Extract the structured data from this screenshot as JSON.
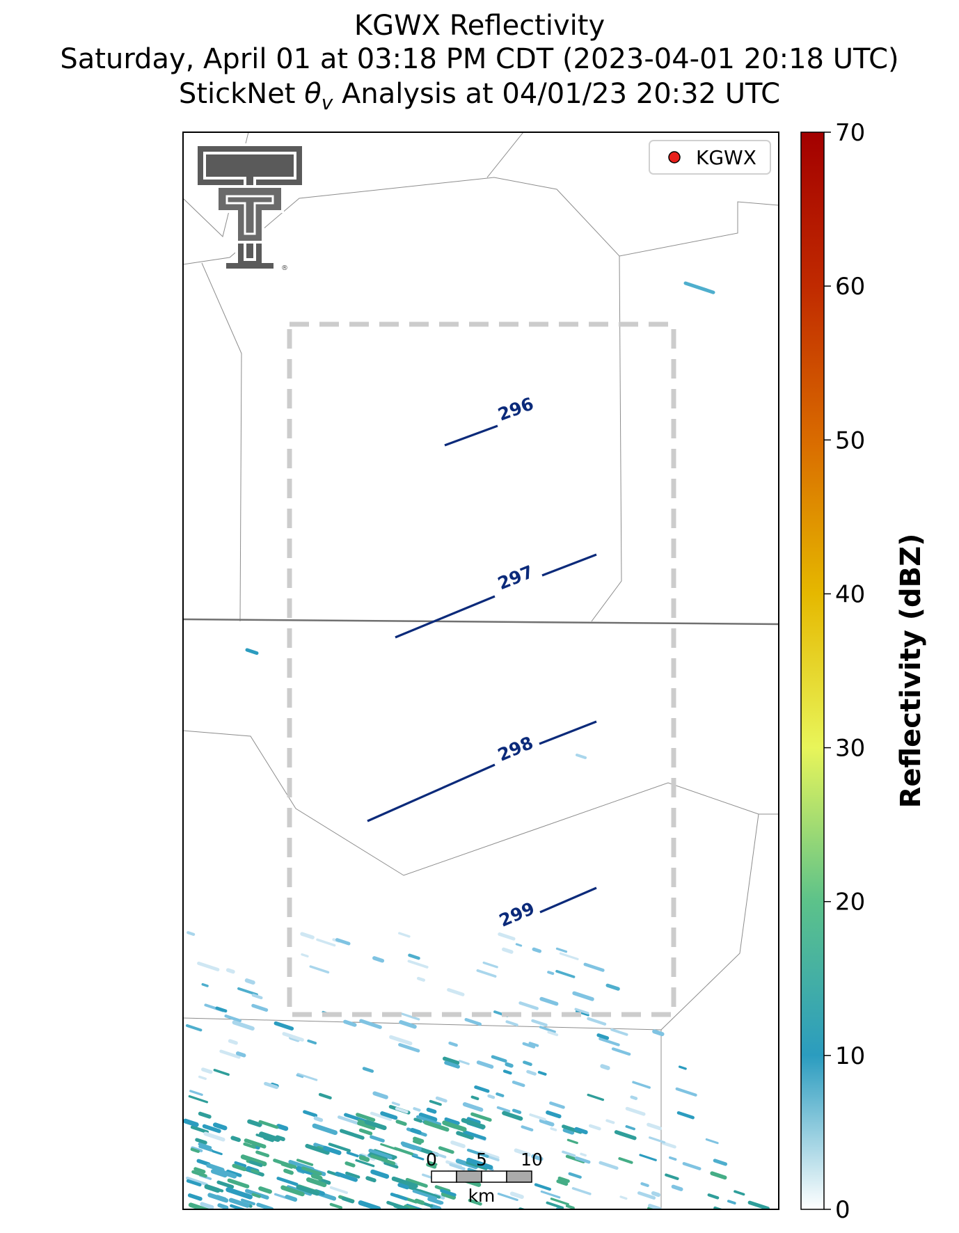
{
  "title": {
    "line1": "KGWX Reflectivity",
    "line2": "Saturday, April 01 at 03:18 PM CDT (2023-04-01 20:18 UTC)",
    "line3_prefix": "StickNet ",
    "line3_symbol": "θ",
    "line3_subscript": "v",
    "line3_suffix": " Analysis at 04/01/23 20:32 UTC"
  },
  "legend": {
    "label": "KGWX",
    "marker_color": "#e8201c"
  },
  "colorbar": {
    "label": "Reflectivity (dBZ)",
    "ticks": [
      "0",
      "10",
      "20",
      "30",
      "40",
      "50",
      "60",
      "70"
    ],
    "range": [
      0,
      70
    ],
    "colors": [
      "#ffffff",
      "#2b9cbf",
      "#5cc28a",
      "#e8f55a",
      "#e5b800",
      "#d96b00",
      "#c02a00",
      "#a30000"
    ]
  },
  "contours": [
    {
      "label": "296",
      "color": "#0b2a7a"
    },
    {
      "label": "297",
      "color": "#0b2a7a"
    },
    {
      "label": "298",
      "color": "#0b2a7a"
    },
    {
      "label": "299",
      "color": "#0b2a7a"
    }
  ],
  "scalebar": {
    "ticks": [
      "0",
      "5",
      "10"
    ],
    "unit": "km"
  },
  "logo": {
    "name": "Texas Tech Double T",
    "mark": "®"
  },
  "analysis_box": {
    "style": "dashed",
    "color": "#cccccc"
  }
}
